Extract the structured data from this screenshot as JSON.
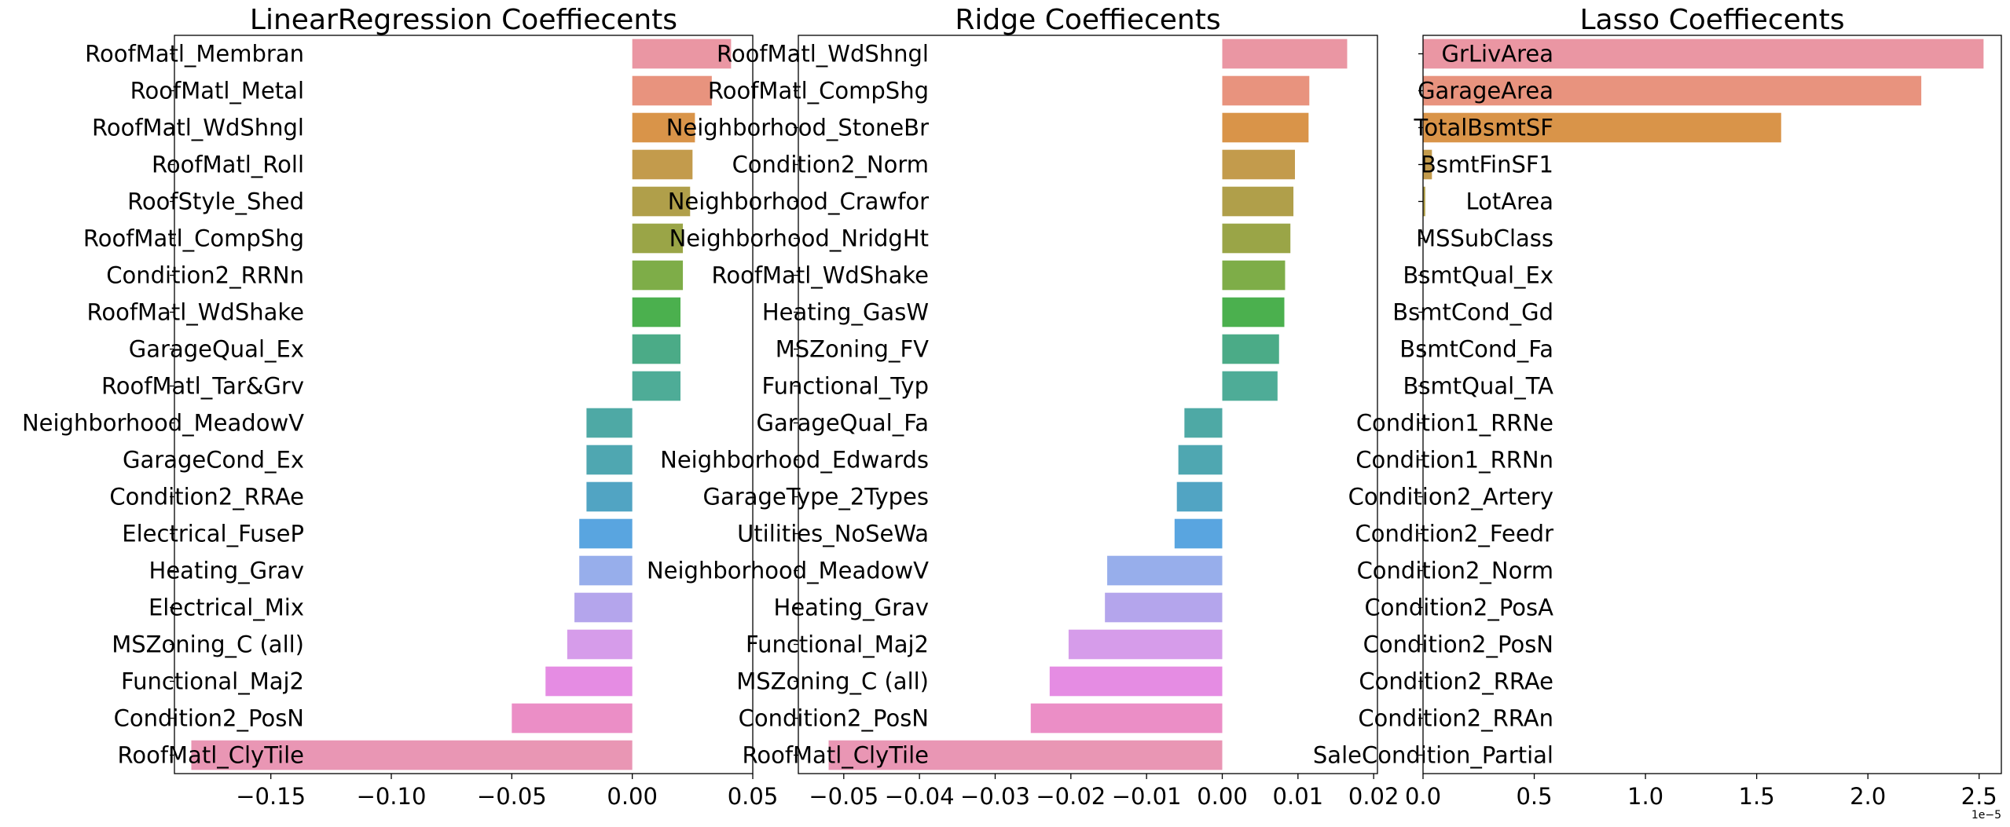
{
  "chart_data": [
    {
      "type": "bar",
      "orientation": "horizontal",
      "title": "LinearRegression Coeffiecents",
      "xlim": [
        -0.19,
        0.05
      ],
      "xticks": [
        -0.15,
        -0.1,
        -0.05,
        0.0,
        0.05
      ],
      "xtick_labels": [
        "−0.15",
        "−0.10",
        "−0.05",
        "0.00",
        "0.05"
      ],
      "categories": [
        "RoofMatl_Membran",
        "RoofMatl_Metal",
        "RoofMatl_WdShngl",
        "RoofMatl_Roll",
        "RoofStyle_Shed",
        "RoofMatl_CompShg",
        "Condition2_RRNn",
        "RoofMatl_WdShake",
        "GarageQual_Ex",
        "RoofMatl_Tar&Grv",
        "Neighborhood_MeadowV",
        "GarageCond_Ex",
        "Condition2_RRAe",
        "Electrical_FuseP",
        "Heating_Grav",
        "Electrical_Mix",
        "MSZoning_C (all)",
        "Functional_Maj2",
        "Condition2_PosN",
        "RoofMatl_ClyTile"
      ],
      "values": [
        0.041,
        0.033,
        0.026,
        0.025,
        0.024,
        0.021,
        0.021,
        0.02,
        0.02,
        0.02,
        -0.019,
        -0.019,
        -0.019,
        -0.022,
        -0.022,
        -0.024,
        -0.027,
        -0.036,
        -0.05,
        -0.183
      ]
    },
    {
      "type": "bar",
      "orientation": "horizontal",
      "title": "Ridge Coeffiecents",
      "xlim": [
        -0.056,
        0.0205
      ],
      "xticks": [
        -0.05,
        -0.04,
        -0.03,
        -0.02,
        -0.01,
        0.0,
        0.01,
        0.02
      ],
      "xtick_labels": [
        "−0.05",
        "−0.04",
        "−0.03",
        "−0.02",
        "−0.01",
        "0.00",
        "0.01",
        "0.02"
      ],
      "categories": [
        "RoofMatl_WdShngl",
        "RoofMatl_CompShg",
        "Neighborhood_StoneBr",
        "Condition2_Norm",
        "Neighborhood_Crawfor",
        "Neighborhood_NridgHt",
        "RoofMatl_WdShake",
        "Heating_GasW",
        "MSZoning_FV",
        "Functional_Typ",
        "GarageQual_Fa",
        "Neighborhood_Edwards",
        "GarageType_2Types",
        "Utilities_NoSeWa",
        "Neighborhood_MeadowV",
        "Heating_Grav",
        "Functional_Maj2",
        "MSZoning_C (all)",
        "Condition2_PosN",
        "RoofMatl_ClyTile"
      ],
      "values": [
        0.0165,
        0.0115,
        0.0114,
        0.0096,
        0.0094,
        0.009,
        0.0083,
        0.0082,
        0.0075,
        0.0073,
        -0.005,
        -0.0058,
        -0.006,
        -0.0063,
        -0.0152,
        -0.0155,
        -0.0203,
        -0.0228,
        -0.0253,
        -0.052
      ]
    },
    {
      "type": "bar",
      "orientation": "horizontal",
      "title": "Lasso Coeffiecents",
      "xlim": [
        0,
        2.6
      ],
      "xticks": [
        0.0,
        0.5,
        1.0,
        1.5,
        2.0,
        2.5
      ],
      "xtick_labels": [
        "0.0",
        "0.5",
        "1.0",
        "1.5",
        "2.0",
        "2.5"
      ],
      "offset_label": "1e−5",
      "categories": [
        "GrLivArea",
        "GarageArea",
        "TotalBsmtSF",
        "BsmtFinSF1",
        "LotArea",
        "MSSubClass",
        "BsmtQual_Ex",
        "BsmtCond_Gd",
        "BsmtCond_Fa",
        "BsmtQual_TA",
        "Condition1_RRNe",
        "Condition1_RRNn",
        "Condition2_Artery",
        "Condition2_Feedr",
        "Condition2_Norm",
        "Condition2_PosA",
        "Condition2_PosN",
        "Condition2_RRAe",
        "Condition2_RRAn",
        "SaleCondition_Partial"
      ],
      "values": [
        2.52,
        2.24,
        1.61,
        0.04,
        0.01,
        0,
        0,
        0,
        0,
        0,
        0,
        0,
        0,
        0,
        0,
        0,
        0,
        0,
        0,
        0
      ]
    }
  ],
  "palette": [
    "#ea96a3",
    "#e8937e",
    "#d99449",
    "#c39b4c",
    "#b09f4a",
    "#9aa547",
    "#7ead48",
    "#4bb04e",
    "#4bab87",
    "#4eac97",
    "#4ea9a5",
    "#4fa7b1",
    "#51a4c3",
    "#59a5e0",
    "#97aeeb",
    "#b4a5ec",
    "#d69cea",
    "#e58ce3",
    "#eb8ec6",
    "#e996b4"
  ]
}
